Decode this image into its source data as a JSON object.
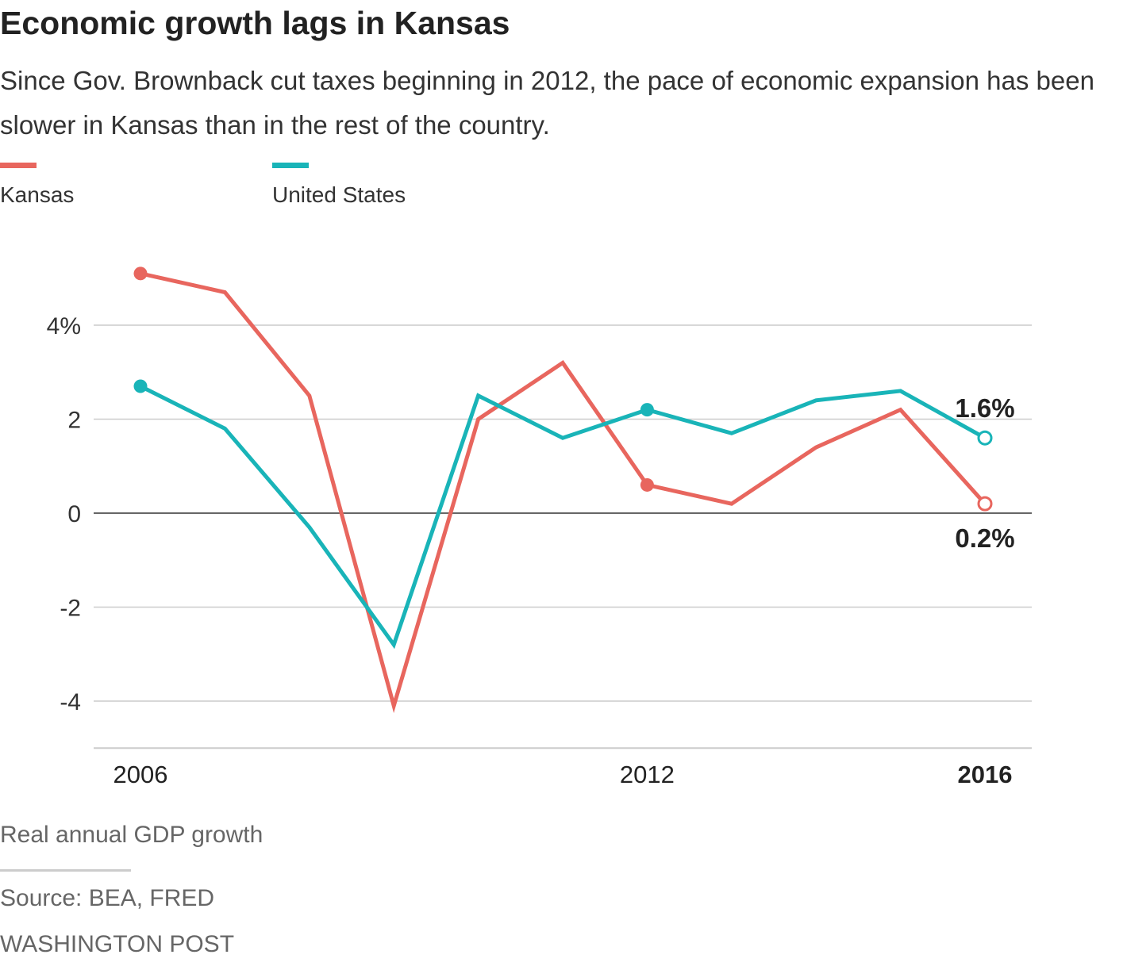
{
  "title": "Economic growth lags in Kansas",
  "subtitle": "Since Gov. Brownback cut taxes beginning in 2012, the pace of economic expansion has been slower in Kansas than in the rest of the country.",
  "note": "Real annual GDP growth",
  "source": "Source: BEA, FRED",
  "credit": "WASHINGTON POST",
  "colors": {
    "kansas": "#e8665e",
    "us": "#19b4b8"
  },
  "chart_data": {
    "type": "line",
    "x": [
      2006,
      2007,
      2008,
      2009,
      2010,
      2011,
      2012,
      2013,
      2014,
      2015,
      2016
    ],
    "series": [
      {
        "name": "Kansas",
        "color": "#e8665e",
        "values": [
          5.1,
          4.7,
          2.5,
          -4.1,
          2.0,
          3.2,
          0.6,
          0.2,
          1.4,
          2.2,
          0.2
        ],
        "end_label": "0.2%"
      },
      {
        "name": "United States",
        "color": "#19b4b8",
        "values": [
          2.7,
          1.8,
          -0.3,
          -2.8,
          2.5,
          1.6,
          2.2,
          1.7,
          2.4,
          2.6,
          1.6
        ],
        "end_label": "1.6%"
      }
    ],
    "highlighted_x": [
      2006,
      2012,
      2016
    ],
    "yticks": [
      {
        "v": 4,
        "label": "4%"
      },
      {
        "v": 2,
        "label": "2"
      },
      {
        "v": 0,
        "label": "0"
      },
      {
        "v": -2,
        "label": "-2"
      },
      {
        "v": -4,
        "label": "-4"
      }
    ],
    "xticks": [
      {
        "v": 2006,
        "label": "2006"
      },
      {
        "v": 2012,
        "label": "2012"
      },
      {
        "v": 2016,
        "label": "2016"
      }
    ],
    "ylim": [
      -5,
      5.5
    ],
    "xlim": [
      2006,
      2016
    ],
    "grid": true,
    "legend": "top-left"
  }
}
